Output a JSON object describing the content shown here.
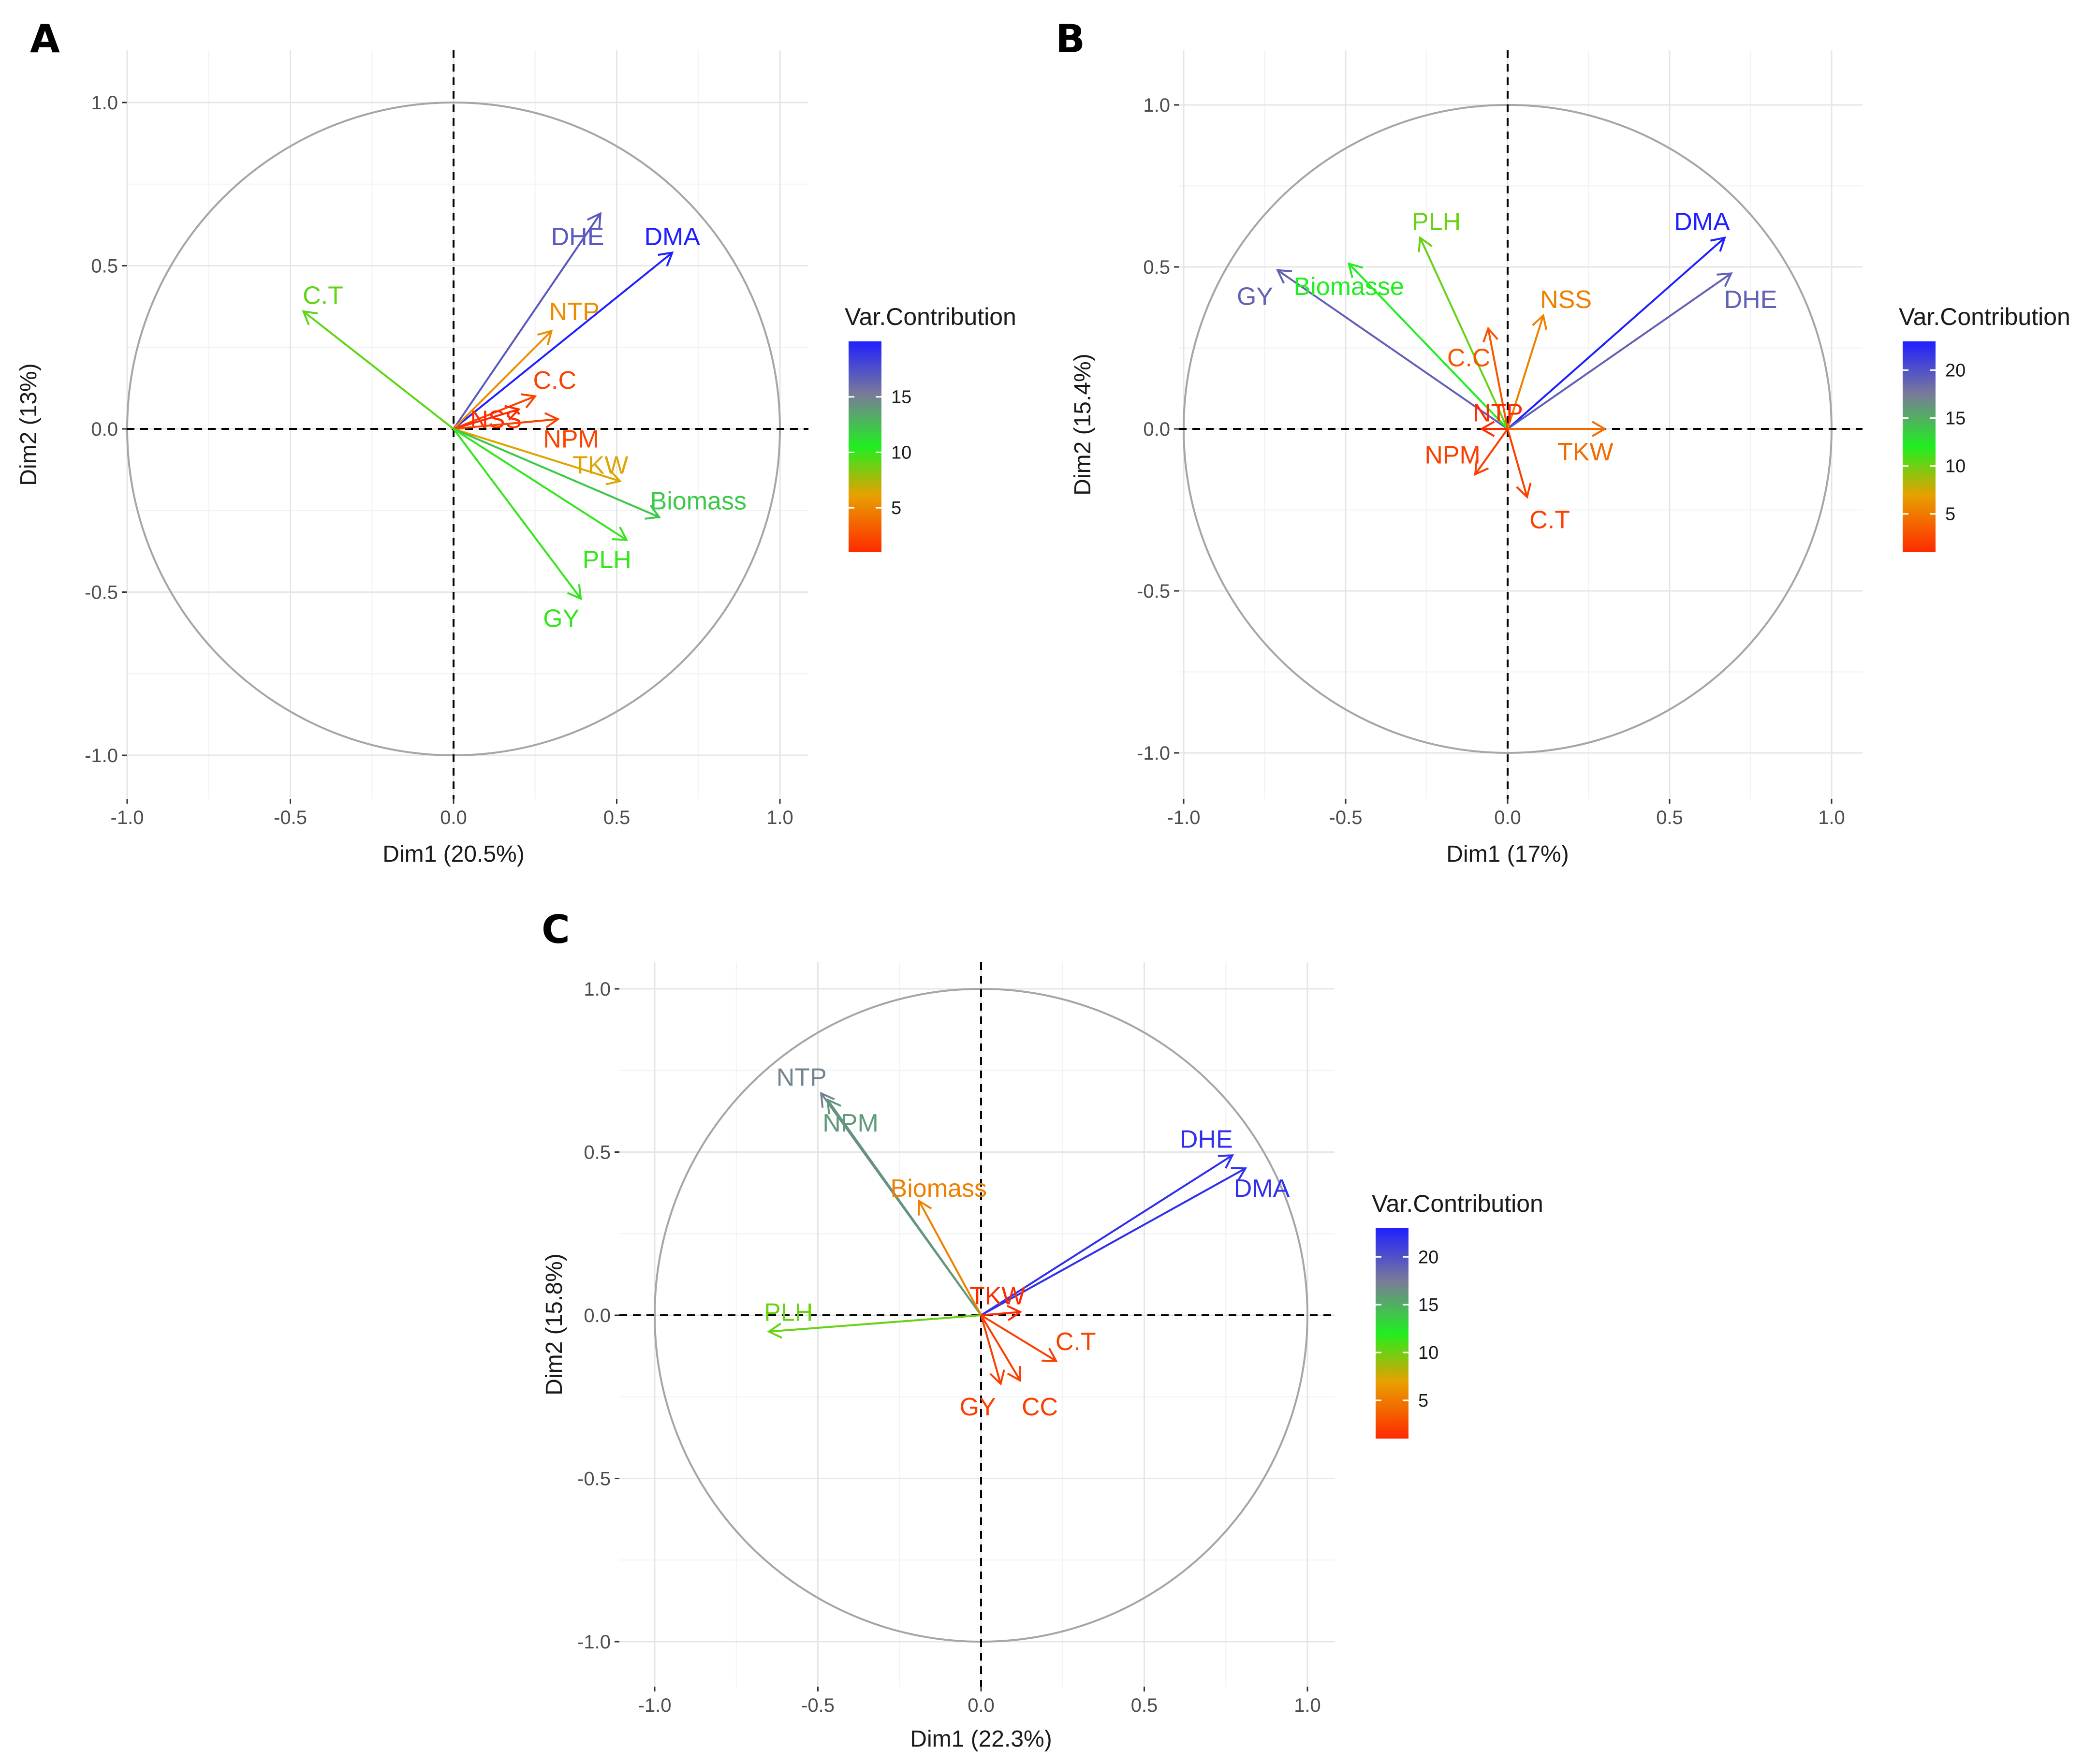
{
  "legend_gradient": [
    "#ff2a00",
    "#e8a000",
    "#20ee20",
    "#7a7a9a",
    "#2020ff"
  ],
  "chart_data": [
    {
      "panel": "A",
      "type": "scatter",
      "subtype": "pca-variable-correlation-circle",
      "xlabel": "Dim1 (20.5%)",
      "ylabel": "Dim2 (13%)",
      "xlim": [
        -1.0,
        1.0
      ],
      "ylim": [
        -1.0,
        1.0
      ],
      "x_ticks": [
        "-1.0",
        "-0.5",
        "0.0",
        "0.5",
        "1.0"
      ],
      "y_ticks": [
        "-1.0",
        "-0.5",
        "0.0",
        "0.5",
        "1.0"
      ],
      "legend_title": "Var.Contribution",
      "legend_ticks": [
        "5",
        "10",
        "15"
      ],
      "legend_range": [
        1,
        20
      ],
      "variables": [
        {
          "name": "DHE",
          "x": 0.45,
          "y": 0.66,
          "contrib": 17,
          "label_x": 0.38,
          "label_y": 0.59
        },
        {
          "name": "DMA",
          "x": 0.67,
          "y": 0.54,
          "contrib": 20,
          "label_x": 0.67,
          "label_y": 0.59
        },
        {
          "name": "C.T",
          "x": -0.46,
          "y": 0.36,
          "contrib": 9,
          "label_x": -0.4,
          "label_y": 0.41
        },
        {
          "name": "NTP",
          "x": 0.3,
          "y": 0.3,
          "contrib": 5,
          "label_x": 0.37,
          "label_y": 0.36
        },
        {
          "name": "C.C",
          "x": 0.25,
          "y": 0.1,
          "contrib": 2,
          "label_x": 0.31,
          "label_y": 0.15
        },
        {
          "name": "NSS",
          "x": 0.2,
          "y": 0.06,
          "contrib": 1,
          "label_x": 0.13,
          "label_y": 0.03
        },
        {
          "name": "NPM",
          "x": 0.32,
          "y": 0.03,
          "contrib": 2,
          "label_x": 0.36,
          "label_y": -0.03
        },
        {
          "name": "TKW",
          "x": 0.51,
          "y": -0.16,
          "contrib": 6,
          "label_x": 0.45,
          "label_y": -0.11
        },
        {
          "name": "Biomass",
          "x": 0.63,
          "y": -0.27,
          "contrib": 12,
          "label_x": 0.75,
          "label_y": -0.22
        },
        {
          "name": "PLH",
          "x": 0.53,
          "y": -0.34,
          "contrib": 10,
          "label_x": 0.47,
          "label_y": -0.4
        },
        {
          "name": "GY",
          "x": 0.39,
          "y": -0.52,
          "contrib": 10,
          "label_x": 0.33,
          "label_y": -0.58
        }
      ]
    },
    {
      "panel": "B",
      "type": "scatter",
      "subtype": "pca-variable-correlation-circle",
      "xlabel": "Dim1 (17%)",
      "ylabel": "Dim2 (15.4%)",
      "xlim": [
        -1.0,
        1.0
      ],
      "ylim": [
        -1.0,
        1.0
      ],
      "x_ticks": [
        "-1.0",
        "-0.5",
        "0.0",
        "0.5",
        "1.0"
      ],
      "y_ticks": [
        "-1.0",
        "-0.5",
        "0.0",
        "0.5",
        "1.0"
      ],
      "legend_title": "Var.Contribution",
      "legend_ticks": [
        "5",
        "10",
        "15",
        "20"
      ],
      "legend_range": [
        1,
        23
      ],
      "variables": [
        {
          "name": "DMA",
          "x": 0.67,
          "y": 0.59,
          "contrib": 23,
          "label_x": 0.6,
          "label_y": 0.64
        },
        {
          "name": "DHE",
          "x": 0.69,
          "y": 0.48,
          "contrib": 19,
          "label_x": 0.75,
          "label_y": 0.4
        },
        {
          "name": "GY",
          "x": -0.71,
          "y": 0.49,
          "contrib": 19,
          "label_x": -0.78,
          "label_y": 0.41
        },
        {
          "name": "PLH",
          "x": -0.27,
          "y": 0.59,
          "contrib": 10,
          "label_x": -0.22,
          "label_y": 0.64
        },
        {
          "name": "Biomasse",
          "x": -0.49,
          "y": 0.51,
          "contrib": 12,
          "label_x": -0.49,
          "label_y": 0.44
        },
        {
          "name": "NSS",
          "x": 0.11,
          "y": 0.35,
          "contrib": 5,
          "label_x": 0.18,
          "label_y": 0.4
        },
        {
          "name": "C.C",
          "x": -0.06,
          "y": 0.31,
          "contrib": 3,
          "label_x": -0.12,
          "label_y": 0.22
        },
        {
          "name": "NTP",
          "x": -0.08,
          "y": 0.0,
          "contrib": 1,
          "label_x": -0.03,
          "label_y": 0.05
        },
        {
          "name": "TKW",
          "x": 0.3,
          "y": 0.0,
          "contrib": 4,
          "label_x": 0.24,
          "label_y": -0.07
        },
        {
          "name": "NPM",
          "x": -0.1,
          "y": -0.14,
          "contrib": 2,
          "label_x": -0.17,
          "label_y": -0.08
        },
        {
          "name": "C.T",
          "x": 0.06,
          "y": -0.21,
          "contrib": 2,
          "label_x": 0.13,
          "label_y": -0.28
        }
      ]
    },
    {
      "panel": "C",
      "type": "scatter",
      "subtype": "pca-variable-correlation-circle",
      "xlabel": "Dim1 (22.3%)",
      "ylabel": "Dim2 (15.8%)",
      "xlim": [
        -1.0,
        1.0
      ],
      "ylim": [
        -1.0,
        1.0
      ],
      "x_ticks": [
        "-1.0",
        "-0.5",
        "0.0",
        "0.5",
        "1.0"
      ],
      "y_ticks": [
        "-1.0",
        "-0.5",
        "0.0",
        "0.5",
        "1.0"
      ],
      "legend_title": "Var.Contribution",
      "legend_ticks": [
        "5",
        "10",
        "15",
        "20"
      ],
      "legend_range": [
        1,
        23
      ],
      "variables": [
        {
          "name": "NTP",
          "x": -0.49,
          "y": 0.68,
          "contrib": 17,
          "label_x": -0.55,
          "label_y": 0.73
        },
        {
          "name": "NPM",
          "x": -0.47,
          "y": 0.66,
          "contrib": 16,
          "label_x": -0.4,
          "label_y": 0.59
        },
        {
          "name": "Biomass",
          "x": -0.19,
          "y": 0.35,
          "contrib": 5,
          "label_x": -0.13,
          "label_y": 0.39
        },
        {
          "name": "DHE",
          "x": 0.77,
          "y": 0.49,
          "contrib": 22,
          "label_x": 0.69,
          "label_y": 0.54
        },
        {
          "name": "DMA",
          "x": 0.81,
          "y": 0.45,
          "contrib": 22,
          "label_x": 0.86,
          "label_y": 0.39
        },
        {
          "name": "TKW",
          "x": 0.12,
          "y": 0.01,
          "contrib": 1,
          "label_x": 0.05,
          "label_y": 0.06
        },
        {
          "name": "PLH",
          "x": -0.65,
          "y": -0.05,
          "contrib": 10,
          "label_x": -0.59,
          "label_y": 0.01
        },
        {
          "name": "C.T",
          "x": 0.23,
          "y": -0.14,
          "contrib": 2,
          "label_x": 0.29,
          "label_y": -0.08
        },
        {
          "name": "CC",
          "x": 0.12,
          "y": -0.2,
          "contrib": 2,
          "label_x": 0.18,
          "label_y": -0.28
        },
        {
          "name": "GY",
          "x": 0.06,
          "y": -0.21,
          "contrib": 2,
          "label_x": -0.01,
          "label_y": -0.28
        }
      ]
    }
  ]
}
